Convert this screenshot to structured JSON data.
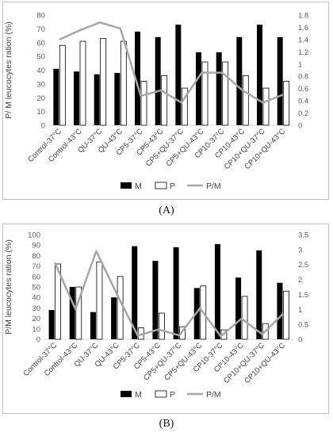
{
  "chart_data": [
    {
      "type": "bar",
      "panel_label": "(A)",
      "ylabel": "P/ M leucocytes ration (%)",
      "ylim": [
        0,
        80
      ],
      "yticks": [
        0,
        10,
        20,
        30,
        40,
        50,
        60,
        70,
        80
      ],
      "y2lim": [
        0,
        1.8
      ],
      "y2ticks": [
        "0",
        "0.2",
        "0.4",
        "0.6",
        "0.8",
        "1",
        "1.2",
        "1.4",
        "1.6",
        "1.8"
      ],
      "grid": false,
      "legend_position": "bottom",
      "categories": [
        "Control-37°C",
        "Control-43°C",
        "QU-37°C",
        "QU-43°C",
        "CP5-37°C",
        "CP5-43°C",
        "CP5+QU-37°C",
        "CP5+QU-43°C",
        "CP10-37°C",
        "CP10-43°C",
        "CP10+QU-37°C",
        "CP10+QU-43°C"
      ],
      "series": [
        {
          "name": "M",
          "type": "bar",
          "color": "#000000",
          "axis": "left",
          "values": [
            41,
            39,
            37,
            38,
            68,
            64,
            73,
            53,
            53,
            64,
            73,
            64
          ]
        },
        {
          "name": "P",
          "type": "bar",
          "color": "#ffffff",
          "axis": "left",
          "values": [
            58,
            61,
            63,
            61,
            32,
            36,
            27,
            46,
            46,
            36,
            27,
            32
          ]
        },
        {
          "name": "P/M",
          "type": "line",
          "color": "#a6a6a6",
          "axis": "right",
          "values": [
            1.4,
            1.55,
            1.68,
            1.58,
            0.48,
            0.57,
            0.37,
            0.86,
            0.86,
            0.57,
            0.37,
            0.5
          ]
        }
      ]
    },
    {
      "type": "bar",
      "panel_label": "(B)",
      "ylabel": "P/M leucocytes ration (%)",
      "ylim": [
        0,
        100
      ],
      "yticks": [
        0,
        10,
        20,
        30,
        40,
        50,
        60,
        70,
        80,
        90,
        100
      ],
      "y2lim": [
        0,
        3.5
      ],
      "y2ticks": [
        "0",
        "0.5",
        "1",
        "1.5",
        "2",
        "2.5",
        "3",
        "3.5"
      ],
      "grid": false,
      "legend_position": "bottom",
      "categories": [
        "Control-37°C",
        "Control-43°C",
        "QU-37°C",
        "QU-43°C",
        "CP5-37°C",
        "CP5-43°C",
        "CP5+QU-37°C",
        "CP5+QU-43°C",
        "CP10-37°C",
        "CP10-43°C",
        "CP10+QU-37°C",
        "CP10+QU-43°C"
      ],
      "series": [
        {
          "name": "M",
          "type": "bar",
          "color": "#000000",
          "axis": "left",
          "values": [
            28,
            50,
            26,
            40,
            89,
            75,
            88,
            49,
            91,
            59,
            85,
            54
          ]
        },
        {
          "name": "P",
          "type": "bar",
          "color": "#ffffff",
          "axis": "left",
          "values": [
            72,
            50,
            74,
            60,
            11,
            25,
            12,
            51,
            9,
            41,
            15,
            46
          ]
        },
        {
          "name": "P/M",
          "type": "line",
          "color": "#a6a6a6",
          "axis": "right",
          "values": [
            2.57,
            1.0,
            2.95,
            1.5,
            0.12,
            0.33,
            0.13,
            1.04,
            0.1,
            0.69,
            0.17,
            0.85
          ]
        }
      ]
    }
  ]
}
